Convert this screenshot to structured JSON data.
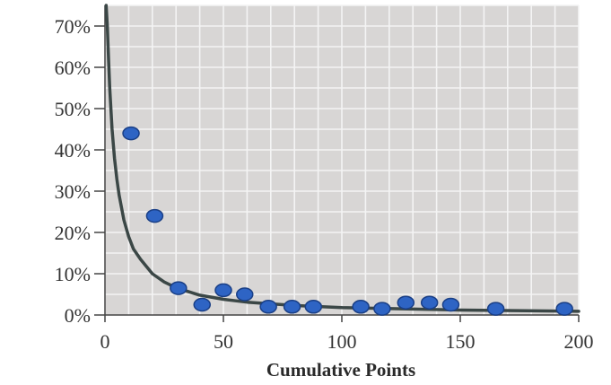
{
  "chart_data": {
    "type": "scatter",
    "title": "",
    "xlabel": "Cumulative Points",
    "ylabel": "",
    "xlim": [
      0,
      200
    ],
    "ylim": [
      0,
      75
    ],
    "x_ticks": [
      0,
      50,
      100,
      150,
      200
    ],
    "x_tick_labels": [
      "0",
      "50",
      "100",
      "150",
      "200"
    ],
    "y_ticks": [
      0,
      10,
      20,
      30,
      40,
      50,
      60,
      70
    ],
    "y_tick_labels": [
      "0%",
      "10%",
      "20%",
      "30%",
      "40%",
      "50%",
      "60%",
      "70%"
    ],
    "grid": true,
    "legend": "none",
    "points": [
      {
        "x": 11,
        "y": 44
      },
      {
        "x": 21,
        "y": 24
      },
      {
        "x": 31,
        "y": 6.5
      },
      {
        "x": 41,
        "y": 2.5
      },
      {
        "x": 50,
        "y": 6
      },
      {
        "x": 59,
        "y": 5
      },
      {
        "x": 69,
        "y": 2
      },
      {
        "x": 79,
        "y": 2
      },
      {
        "x": 88,
        "y": 2
      },
      {
        "x": 108,
        "y": 2
      },
      {
        "x": 117,
        "y": 1.5
      },
      {
        "x": 127,
        "y": 3
      },
      {
        "x": 137,
        "y": 3
      },
      {
        "x": 146,
        "y": 2.5
      },
      {
        "x": 165,
        "y": 1.5
      },
      {
        "x": 194,
        "y": 1.5
      }
    ],
    "trend_curve": {
      "x": [
        0.5,
        1,
        1.5,
        2,
        3,
        4,
        5,
        6,
        8,
        10,
        12,
        15,
        20,
        25,
        30,
        40,
        50,
        60,
        80,
        100,
        150,
        200
      ],
      "y": [
        75,
        70,
        62,
        55,
        45,
        38,
        33,
        29,
        23,
        19,
        16,
        13.5,
        10,
        8,
        6.6,
        4.8,
        3.8,
        3.1,
        2.3,
        1.8,
        1.2,
        0.9
      ]
    },
    "colors": {
      "plot_background": "#d8d6d5",
      "grid": "#f4f4f4",
      "point_fill": "#2e64c4",
      "point_stroke": "#1a3f86",
      "curve": "#3b4746",
      "axis": "#444444"
    }
  }
}
